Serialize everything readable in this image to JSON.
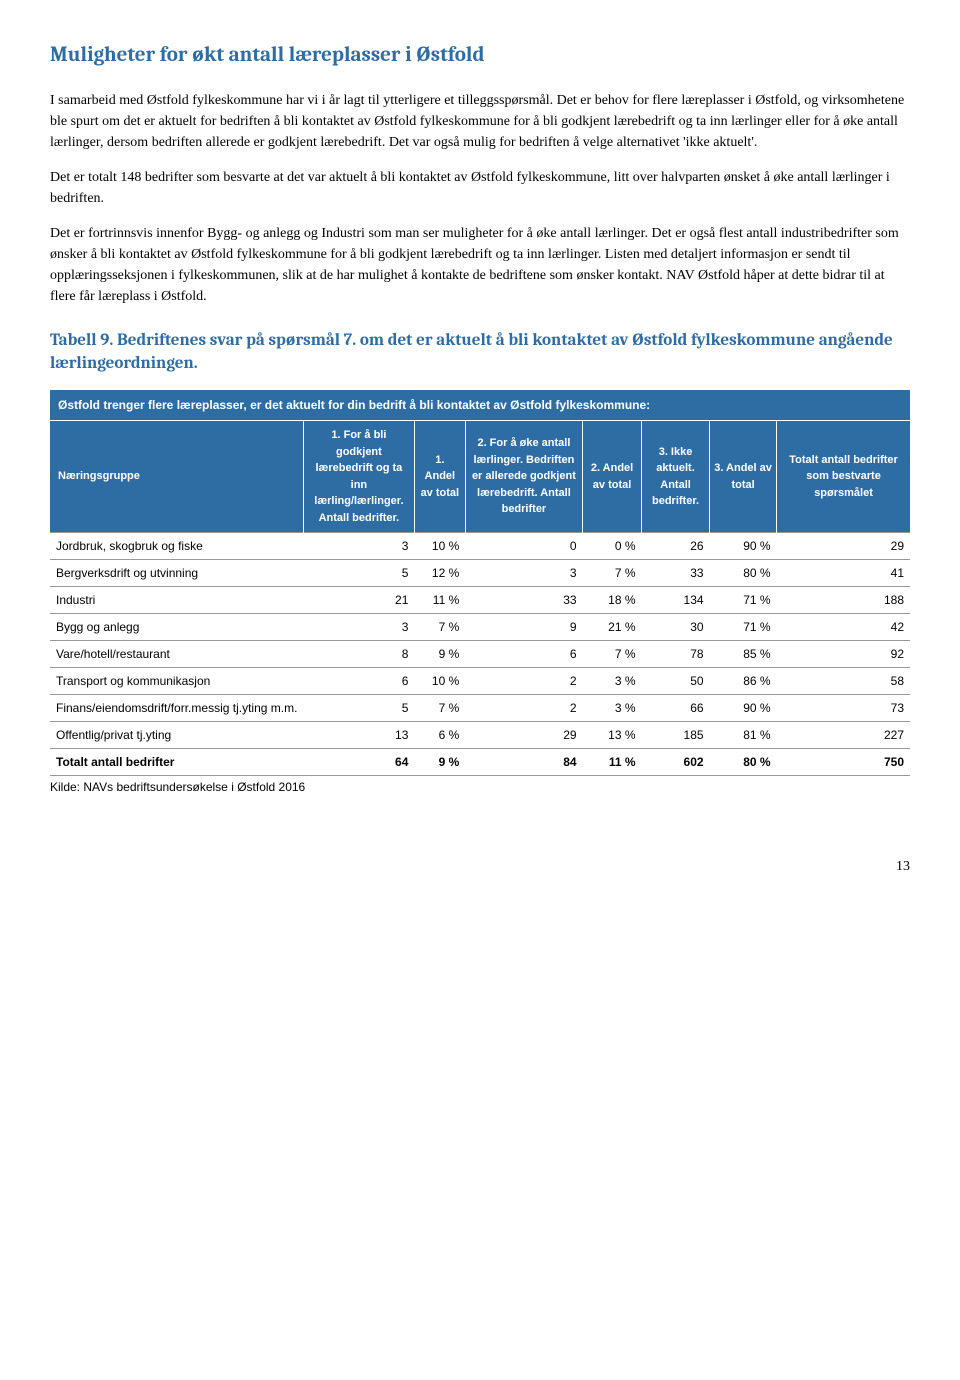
{
  "page": {
    "heading": "Muligheter for økt antall læreplasser i Østfold",
    "para1": "I samarbeid med Østfold fylkeskommune har vi i år lagt til ytterligere et tilleggsspørsmål. Det er behov for flere læreplasser i Østfold, og virksomhetene ble spurt om det er aktuelt for bedriften å bli kontaktet av Østfold fylkeskommune for å bli godkjent lærebedrift og ta inn lærlinger eller for å øke antall lærlinger, dersom bedriften allerede er godkjent lærebedrift. Det var også mulig for bedriften å velge alternativet 'ikke aktuelt'.",
    "para2": "Det er totalt 148 bedrifter som besvarte at det var aktuelt å bli kontaktet av Østfold fylkeskommune, litt over halvparten ønsket å øke antall lærlinger i bedriften.",
    "para3": "Det er fortrinnsvis innenfor Bygg- og anlegg og Industri som man ser muligheter for å øke antall lærlinger. Det er også flest antall industribedrifter som ønsker å bli kontaktet av Østfold fylkeskommune for å bli godkjent lærebedrift og ta inn lærlinger. Listen med detaljert informasjon er sendt til opplæringsseksjonen i fylkeskommunen, slik at de har mulighet å kontakte de bedriftene som ønsker kontakt. NAV Østfold håper at dette bidrar til at flere får læreplass i Østfold.",
    "tableHeading": "Tabell 9. Bedriftenes svar på spørsmål 7. om det er aktuelt å bli kontaktet av Østfold fylkeskommune angående lærlingeordningen.",
    "number": "13"
  },
  "table": {
    "topRow": "Østfold trenger flere læreplasser, er det aktuelt for din bedrift å bli kontaktet av Østfold fylkeskommune:",
    "headers": {
      "c0": "Næringsgruppe",
      "c1": "1. For å bli godkjent lærebedrift og ta inn lærling/lærlinger. Antall bedrifter.",
      "c2": "1. Andel av total",
      "c3": "2. For å øke antall lærlinger. Bedriften er allerede godkjent lærebedrift. Antall bedrifter",
      "c4": "2. Andel av total",
      "c5": "3. Ikke aktuelt. Antall bedrifter.",
      "c6": "3. Andel av total",
      "c7": "Totalt antall bedrifter som bestvarte spørsmålet"
    },
    "rows": [
      {
        "c0": "Jordbruk, skogbruk og fiske",
        "c1": "3",
        "c2": "10 %",
        "c3": "0",
        "c4": "0 %",
        "c5": "26",
        "c6": "90 %",
        "c7": "29"
      },
      {
        "c0": "Bergverksdrift og utvinning",
        "c1": "5",
        "c2": "12 %",
        "c3": "3",
        "c4": "7 %",
        "c5": "33",
        "c6": "80 %",
        "c7": "41"
      },
      {
        "c0": "Industri",
        "c1": "21",
        "c2": "11 %",
        "c3": "33",
        "c4": "18 %",
        "c5": "134",
        "c6": "71 %",
        "c7": "188"
      },
      {
        "c0": "Bygg og anlegg",
        "c1": "3",
        "c2": "7 %",
        "c3": "9",
        "c4": "21 %",
        "c5": "30",
        "c6": "71 %",
        "c7": "42"
      },
      {
        "c0": "Vare/hotell/restaurant",
        "c1": "8",
        "c2": "9 %",
        "c3": "6",
        "c4": "7 %",
        "c5": "78",
        "c6": "85 %",
        "c7": "92"
      },
      {
        "c0": "Transport og kommunikasjon",
        "c1": "6",
        "c2": "10 %",
        "c3": "2",
        "c4": "3 %",
        "c5": "50",
        "c6": "86 %",
        "c7": "58"
      },
      {
        "c0": "Finans/eiendomsdrift/forr.messig tj.yting m.m.",
        "c1": "5",
        "c2": "7 %",
        "c3": "2",
        "c4": "3 %",
        "c5": "66",
        "c6": "90 %",
        "c7": "73"
      },
      {
        "c0": "Offentlig/privat tj.yting",
        "c1": "13",
        "c2": "6 %",
        "c3": "29",
        "c4": "13 %",
        "c5": "185",
        "c6": "81 %",
        "c7": "227"
      }
    ],
    "totalRow": {
      "c0": "Totalt antall bedrifter",
      "c1": "64",
      "c2": "9 %",
      "c3": "84",
      "c4": "11 %",
      "c5": "602",
      "c6": "80 %",
      "c7": "750"
    },
    "source": "Kilde: NAVs bedriftsundersøkelse i Østfold 2016",
    "colWidths": [
      "28%",
      "13%",
      "6%",
      "14%",
      "7%",
      "8%",
      "8%",
      "16%"
    ],
    "headerBg": "#2e6da4",
    "headerColor": "#ffffff",
    "borderColor": "#999999"
  }
}
